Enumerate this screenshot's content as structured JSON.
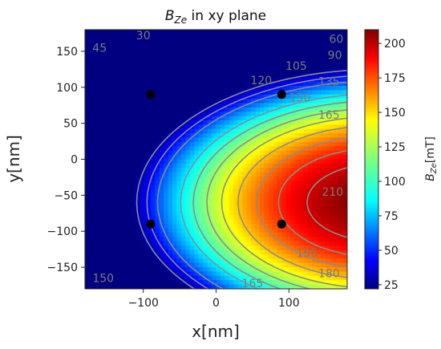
{
  "chart_data": {
    "type": "heatmap",
    "title": "B_Ze in xy plane",
    "title_main": "B",
    "title_sub": "Ze",
    "title_rest": " in xy plane",
    "xlabel": "x[nm]",
    "ylabel": "y[nm]",
    "colorbar_label": "B_Ze[mT]",
    "colorbar_label_main": "B",
    "colorbar_label_sub": "Ze",
    "colorbar_label_rest": "[mT]",
    "xlim": [
      -180,
      180
    ],
    "ylim": [
      -180,
      180
    ],
    "x_ticks": [
      -100,
      0,
      100
    ],
    "y_ticks": [
      150,
      100,
      50,
      0,
      -50,
      -100,
      -150
    ],
    "colorbar_range": [
      22,
      210
    ],
    "colorbar_ticks": [
      200,
      175,
      150,
      125,
      100,
      75,
      50,
      25
    ],
    "colormap": "jet",
    "contour_levels": [
      30,
      45,
      60,
      90,
      105,
      120,
      135,
      150,
      165,
      180,
      195,
      210
    ],
    "contour_labels": [
      {
        "text": "30",
        "x": -100,
        "y": 172
      },
      {
        "text": "45",
        "x": -160,
        "y": 155
      },
      {
        "text": "60",
        "x": 165,
        "y": 167
      },
      {
        "text": "90",
        "x": 163,
        "y": 145
      },
      {
        "text": "105",
        "x": 110,
        "y": 130
      },
      {
        "text": "120",
        "x": 62,
        "y": 110
      },
      {
        "text": "135",
        "x": 155,
        "y": 108
      },
      {
        "text": "150",
        "x": 115,
        "y": 86
      },
      {
        "text": "165",
        "x": 155,
        "y": 62
      },
      {
        "text": "210",
        "x": 160,
        "y": -45
      },
      {
        "text": "195",
        "x": 125,
        "y": -130
      },
      {
        "text": "180",
        "x": 155,
        "y": -158
      },
      {
        "text": "165",
        "x": 50,
        "y": -172
      },
      {
        "text": "150",
        "x": -155,
        "y": -165
      }
    ],
    "points": [
      {
        "x": -90,
        "y": 90
      },
      {
        "x": 90,
        "y": 90
      },
      {
        "x": -90,
        "y": -90
      },
      {
        "x": 90,
        "y": -90
      }
    ],
    "colors": {
      "contour": "#8c8c8c",
      "contour_label": "#7a7a7a",
      "marker": "#000000"
    }
  }
}
